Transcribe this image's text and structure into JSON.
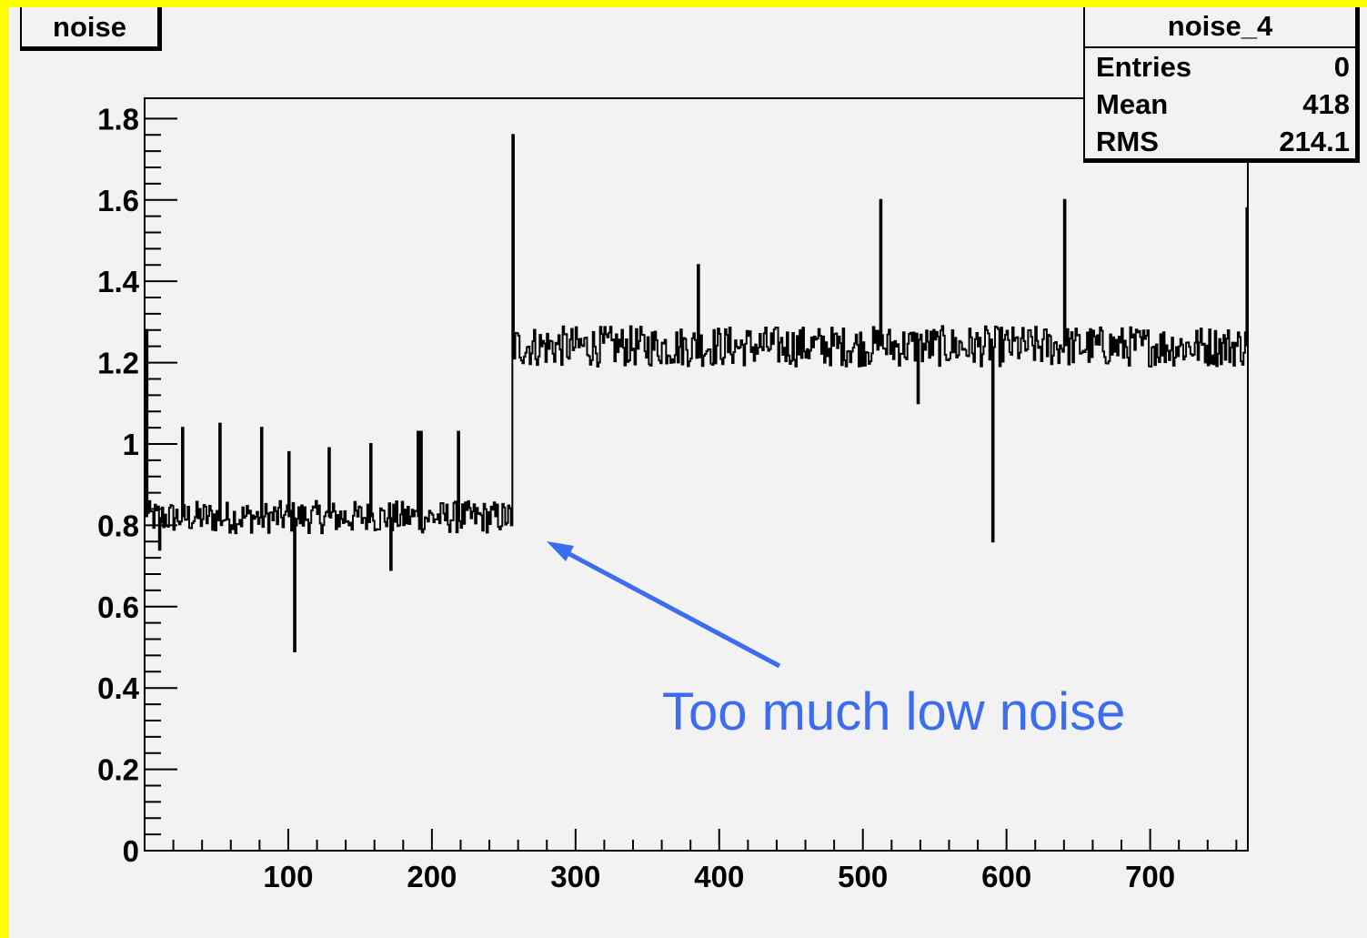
{
  "title": "noise",
  "stats": {
    "name": "noise_4",
    "rows": [
      {
        "label": "Entries",
        "value": "0"
      },
      {
        "label": "Mean",
        "value": "418"
      },
      {
        "label": "RMS",
        "value": "214.1"
      }
    ]
  },
  "annotation": {
    "text": "Too much low noise",
    "color": "#3c6cf0"
  },
  "chart_data": {
    "type": "line",
    "title": "noise",
    "xlim": [
      0,
      768
    ],
    "ylim": [
      0,
      1.85
    ],
    "xticks": [
      100,
      200,
      300,
      400,
      500,
      600,
      700
    ],
    "yticks": [
      0,
      0.2,
      0.4,
      0.6,
      0.8,
      1,
      1.2,
      1.4,
      1.6,
      1.8
    ],
    "ytick_labels": [
      "0",
      "0.2",
      "0.4",
      "0.6",
      "0.8",
      "1",
      "1.2",
      "1.4",
      "1.6",
      "1.8"
    ],
    "series": [
      {
        "color": "#000000",
        "segments": [
          {
            "x_start": 0,
            "x_end": 256,
            "baseline": 0.82,
            "noise": 0.04
          },
          {
            "x_start": 256,
            "x_end": 768,
            "baseline": 1.24,
            "noise": 0.05
          }
        ],
        "spikes": [
          {
            "x": 1,
            "y": 1.28
          },
          {
            "x": 10,
            "y": 0.74
          },
          {
            "x": 26,
            "y": 1.04
          },
          {
            "x": 52,
            "y": 1.05
          },
          {
            "x": 81,
            "y": 1.04
          },
          {
            "x": 100,
            "y": 0.98
          },
          {
            "x": 104,
            "y": 0.49
          },
          {
            "x": 128,
            "y": 0.99
          },
          {
            "x": 157,
            "y": 1.0
          },
          {
            "x": 171,
            "y": 0.69
          },
          {
            "x": 190,
            "y": 1.03
          },
          {
            "x": 192,
            "y": 1.03
          },
          {
            "x": 218,
            "y": 1.03
          },
          {
            "x": 255,
            "y": 0.8
          },
          {
            "x": 256,
            "y": 1.76
          },
          {
            "x": 385,
            "y": 1.44
          },
          {
            "x": 512,
            "y": 1.6
          },
          {
            "x": 538,
            "y": 1.1
          },
          {
            "x": 590,
            "y": 0.76
          },
          {
            "x": 640,
            "y": 1.6
          },
          {
            "x": 767,
            "y": 1.58
          }
        ]
      }
    ]
  }
}
